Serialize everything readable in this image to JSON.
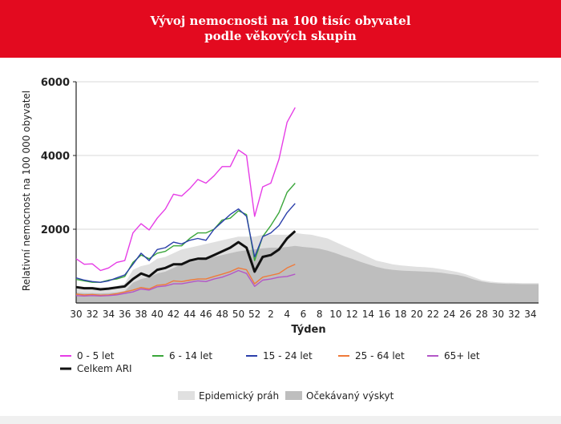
{
  "header": {
    "title_line1": "Vývoj nemocnosti na 100 tisíc obyvatel",
    "title_line2": "podle věkových skupin"
  },
  "chart_data": {
    "type": "line",
    "xlabel": "Týden",
    "ylabel": "Relativní nemocnost na 100 000 obyvatel",
    "ylim": [
      0,
      6000
    ],
    "y_ticks": [
      2000,
      4000,
      6000
    ],
    "x_tick_labels": [
      "30",
      "32",
      "34",
      "36",
      "38",
      "40",
      "42",
      "44",
      "46",
      "48",
      "50",
      "52",
      "2",
      "4",
      "6",
      "8",
      "10",
      "12",
      "14",
      "16",
      "18",
      "20",
      "22",
      "24",
      "26",
      "28",
      "30",
      "32",
      "34"
    ],
    "x_weeks": [
      "30",
      "31",
      "32",
      "33",
      "34",
      "35",
      "36",
      "37",
      "38",
      "39",
      "40",
      "41",
      "42",
      "43",
      "44",
      "45",
      "46",
      "47",
      "48",
      "49",
      "50",
      "51",
      "52",
      "1",
      "2",
      "3",
      "4",
      "5",
      "6",
      "7",
      "8",
      "9",
      "10",
      "11",
      "12",
      "13",
      "14",
      "15",
      "16",
      "17",
      "18",
      "19",
      "20",
      "21",
      "22",
      "23",
      "24",
      "25",
      "26",
      "27",
      "28",
      "29",
      "30",
      "31",
      "32",
      "33",
      "34",
      "35"
    ],
    "grid": "horizontal",
    "series": [
      {
        "name": "0 - 5 let",
        "color": "#e63de6",
        "values": [
          1200,
          1050,
          1060,
          880,
          950,
          1100,
          1150,
          1900,
          2150,
          1980,
          2300,
          2550,
          2950,
          2900,
          3100,
          3350,
          3250,
          3450,
          3700,
          3700,
          4150,
          4000,
          2350,
          3150,
          3250,
          3900,
          4900,
          5300
        ]
      },
      {
        "name": "6 - 14 let",
        "color": "#3aa63a",
        "values": [
          640,
          600,
          560,
          560,
          620,
          650,
          720,
          1100,
          1300,
          1200,
          1350,
          1400,
          1550,
          1550,
          1750,
          1900,
          1900,
          2000,
          2250,
          2300,
          2500,
          2400,
          1150,
          1800,
          2100,
          2450,
          3000,
          3250
        ]
      },
      {
        "name": "15 - 24 let",
        "color": "#2b3faa",
        "values": [
          680,
          620,
          580,
          560,
          600,
          680,
          760,
          1050,
          1350,
          1150,
          1450,
          1500,
          1650,
          1600,
          1700,
          1750,
          1700,
          2000,
          2200,
          2400,
          2550,
          2350,
          1250,
          1800,
          1900,
          2100,
          2450,
          2700
        ]
      },
      {
        "name": "25 - 64 let",
        "color": "#ef7a3a",
        "values": [
          240,
          220,
          230,
          210,
          220,
          250,
          300,
          350,
          420,
          380,
          480,
          500,
          600,
          580,
          620,
          650,
          650,
          720,
          780,
          850,
          950,
          900,
          520,
          700,
          750,
          800,
          950,
          1050
        ]
      },
      {
        "name": "65+ let",
        "color": "#b356c7",
        "values": [
          200,
          190,
          200,
          190,
          200,
          220,
          260,
          300,
          380,
          350,
          440,
          460,
          520,
          520,
          560,
          600,
          580,
          650,
          700,
          780,
          880,
          800,
          450,
          620,
          650,
          700,
          720,
          780
        ]
      },
      {
        "name": "Celkem ARI",
        "color": "#111111",
        "values": [
          430,
          400,
          400,
          370,
          390,
          420,
          450,
          650,
          800,
          720,
          900,
          950,
          1050,
          1050,
          1150,
          1200,
          1200,
          1300,
          1400,
          1500,
          1650,
          1500,
          850,
          1250,
          1300,
          1450,
          1750,
          1950
        ]
      }
    ],
    "areas": [
      {
        "name": "Epidemický práh",
        "color": "#e0e0e0",
        "values": [
          450,
          430,
          430,
          420,
          430,
          460,
          530,
          900,
          1000,
          1050,
          1200,
          1250,
          1350,
          1450,
          1500,
          1550,
          1600,
          1650,
          1700,
          1750,
          1800,
          1800,
          1800,
          1850,
          1850,
          1850,
          1850,
          1900,
          1870,
          1850,
          1800,
          1750,
          1650,
          1550,
          1450,
          1350,
          1250,
          1150,
          1100,
          1050,
          1020,
          1000,
          980,
          970,
          950,
          920,
          880,
          840,
          780,
          700,
          620,
          580,
          560,
          550,
          545,
          540,
          540,
          540
        ]
      },
      {
        "name": "Očekávaný výskyt",
        "color": "#bebebe",
        "values": [
          280,
          270,
          270,
          260,
          270,
          290,
          320,
          550,
          650,
          700,
          800,
          850,
          950,
          1050,
          1100,
          1150,
          1200,
          1250,
          1300,
          1350,
          1400,
          1430,
          1450,
          1480,
          1500,
          1500,
          1520,
          1550,
          1520,
          1500,
          1470,
          1420,
          1350,
          1270,
          1200,
          1120,
          1050,
          980,
          930,
          900,
          880,
          870,
          860,
          850,
          840,
          820,
          790,
          760,
          710,
          640,
          580,
          545,
          530,
          520,
          515,
          510,
          510,
          510
        ]
      }
    ]
  }
}
